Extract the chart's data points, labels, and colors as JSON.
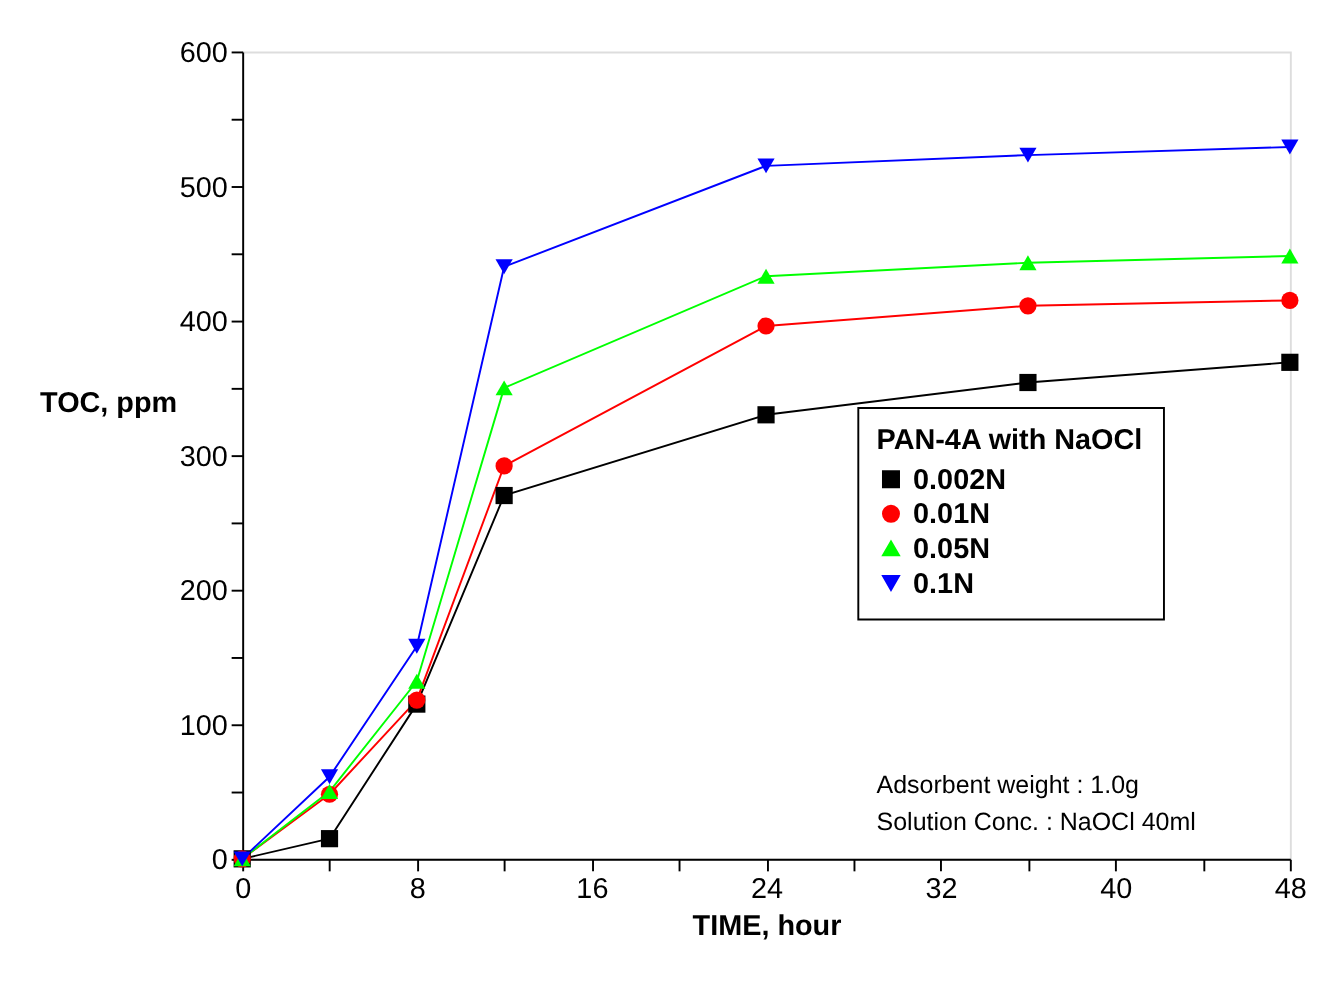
{
  "chart_data": {
    "type": "line",
    "xlabel": "TIME, hour",
    "ylabel": "TOC, ppm",
    "legend_title": "PAN-4A with NaOCl",
    "x": [
      0,
      4,
      8,
      12,
      24,
      36,
      48
    ],
    "series": [
      {
        "name": "0.002N",
        "color": "#000000",
        "marker": "square",
        "values": [
          0,
          15,
          115,
          270,
          330,
          354,
          369
        ]
      },
      {
        "name": "0.01N",
        "color": "#ff0000",
        "marker": "circle",
        "values": [
          0,
          48,
          118,
          292,
          396,
          411,
          415
        ]
      },
      {
        "name": "0.05N",
        "color": "#00ff00",
        "marker": "triangle",
        "values": [
          0,
          50,
          132,
          350,
          433,
          443,
          448
        ]
      },
      {
        "name": "0.1N",
        "color": "#0000ff",
        "marker": "triangle-down",
        "values": [
          0,
          61,
          158,
          440,
          515,
          523,
          529
        ]
      }
    ],
    "xlim": [
      0,
      48
    ],
    "ylim": [
      0,
      600
    ],
    "xticks": [
      0,
      {
        "value": 4,
        "label": null
      },
      8,
      {
        "value": 12,
        "label": null
      },
      16,
      {
        "value": 20,
        "label": null
      },
      24,
      {
        "value": 28,
        "label": null
      },
      32,
      {
        "value": 36,
        "label": null
      },
      40,
      {
        "value": 44,
        "label": null
      },
      48
    ],
    "yticks": [
      0,
      {
        "value": 50,
        "label": null
      },
      100,
      {
        "value": 150,
        "label": null
      },
      200,
      {
        "value": 250,
        "label": null
      },
      300,
      {
        "value": 350,
        "label": null
      },
      400,
      {
        "value": 450,
        "label": null
      },
      500,
      {
        "value": 550,
        "label": null
      },
      600
    ],
    "grid": false,
    "legend": "bottom right",
    "line_style": "solid",
    "annotations": [
      "Adsorbent weight : 1.0g",
      "Solution Conc. : NaOCl 40ml"
    ]
  }
}
